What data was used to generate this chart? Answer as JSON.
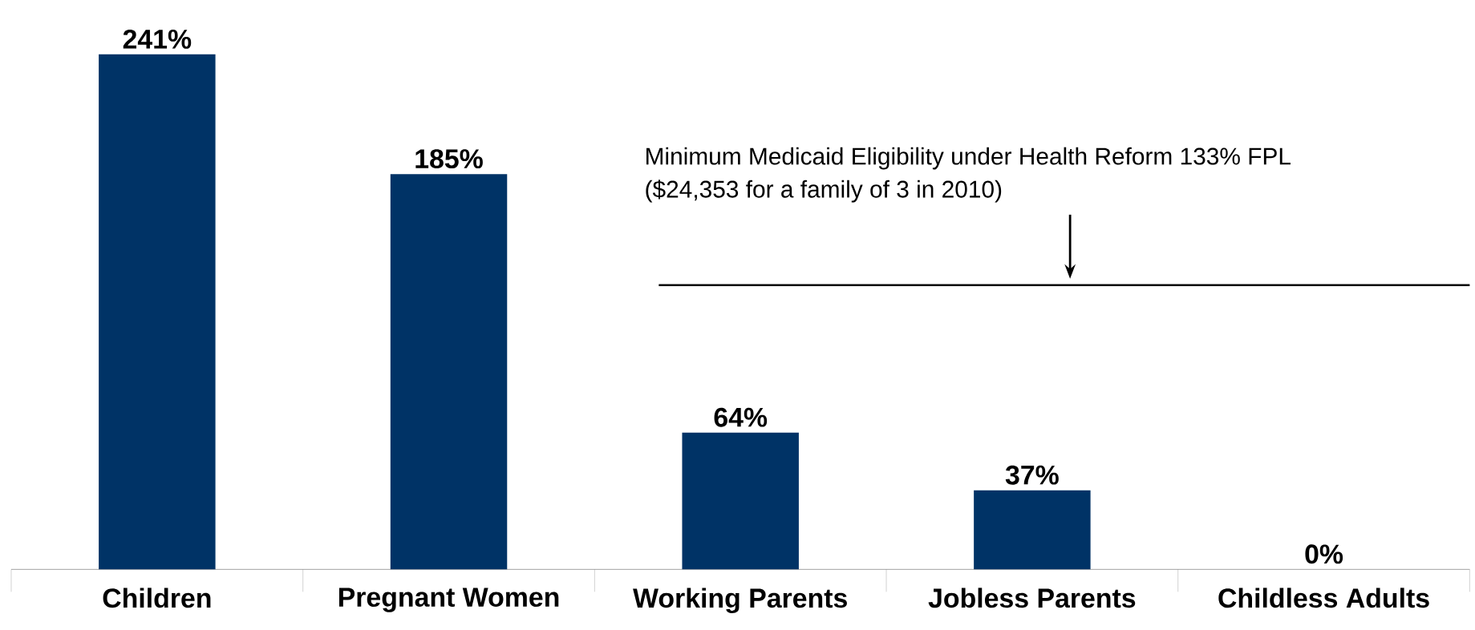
{
  "chart_data": {
    "type": "bar",
    "categories": [
      "Children",
      "Pregnant Women",
      "Working Parents",
      "Jobless Parents",
      "Childless Adults"
    ],
    "values": [
      241,
      185,
      64,
      37,
      0
    ],
    "value_labels": [
      "241%",
      "185%",
      "64%",
      "37%",
      "0%"
    ],
    "color": "#003366",
    "ref_lines": [
      {
        "axis": "y",
        "value": 133,
        "label": "Minimum Medicaid Eligibility under Health Reform 133% FPL",
        "color": "#000000"
      }
    ],
    "annotations": [
      "($24,353 for a family of 3 in 2010)"
    ]
  }
}
